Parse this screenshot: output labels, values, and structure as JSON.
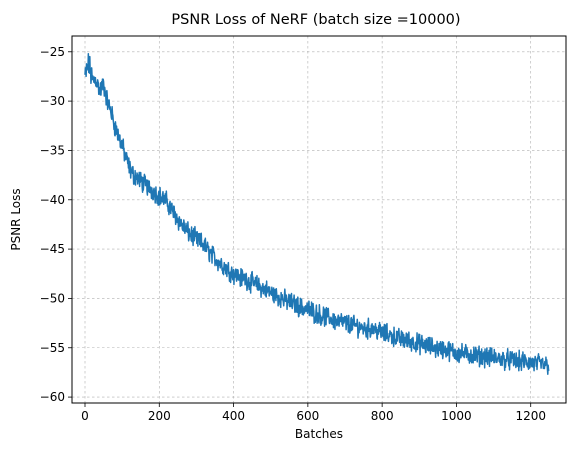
{
  "chart_data": {
    "type": "line",
    "title": "PSNR Loss of NeRF (batch size =10000)",
    "xlabel": "Batches",
    "ylabel": "PSNR Loss",
    "xlim": [
      -35,
      1295
    ],
    "ylim": [
      -60.6,
      -23.4
    ],
    "xticks": [
      0,
      200,
      400,
      600,
      800,
      1000,
      1200
    ],
    "yticks": [
      -60,
      -55,
      -50,
      -45,
      -40,
      -35,
      -30,
      -25
    ],
    "grid": true,
    "series_color": "#1f77b4",
    "series": [
      {
        "x": [
          0,
          10,
          20,
          30,
          40,
          50,
          60,
          70,
          80,
          90,
          100,
          110,
          120,
          130,
          140,
          150,
          160,
          170,
          180,
          190,
          200,
          210,
          220,
          230,
          240,
          250,
          260,
          270,
          280,
          290,
          300,
          310,
          320,
          330,
          340,
          350,
          360,
          370,
          380,
          390,
          400,
          410,
          420,
          430,
          440,
          450,
          460,
          470,
          480,
          490,
          500,
          510,
          520,
          530,
          540,
          550,
          560,
          570,
          580,
          590,
          600,
          610,
          620,
          630,
          640,
          650,
          660,
          670,
          680,
          690,
          700,
          710,
          720,
          730,
          740,
          750,
          760,
          770,
          780,
          790,
          800,
          810,
          820,
          830,
          840,
          850,
          860,
          870,
          880,
          890,
          900,
          910,
          920,
          930,
          940,
          950,
          960,
          970,
          980,
          990,
          1000,
          1010,
          1020,
          1030,
          1040,
          1050,
          1060,
          1070,
          1080,
          1090,
          1100,
          1110,
          1120,
          1130,
          1140,
          1150,
          1160,
          1170,
          1180,
          1190,
          1200,
          1210,
          1220,
          1230,
          1240,
          1250
        ],
        "y": [
          -27.5,
          -26.2,
          -28.0,
          -27.8,
          -29.0,
          -28.3,
          -30.0,
          -31.0,
          -32.5,
          -33.5,
          -34.5,
          -35.8,
          -36.8,
          -37.5,
          -37.7,
          -38.1,
          -38.4,
          -38.7,
          -39.0,
          -39.3,
          -39.6,
          -39.9,
          -40.2,
          -40.8,
          -41.4,
          -42.0,
          -42.5,
          -43.0,
          -43.4,
          -43.7,
          -44.0,
          -44.3,
          -44.6,
          -45.1,
          -45.5,
          -45.9,
          -46.3,
          -46.6,
          -46.9,
          -47.2,
          -47.5,
          -47.7,
          -47.9,
          -48.0,
          -48.2,
          -48.4,
          -48.6,
          -48.8,
          -49.0,
          -49.2,
          -49.4,
          -49.6,
          -49.8,
          -50.0,
          -50.2,
          -50.4,
          -50.5,
          -50.7,
          -50.9,
          -51.0,
          -51.1,
          -51.3,
          -51.5,
          -51.6,
          -51.8,
          -51.9,
          -52.0,
          -52.2,
          -52.3,
          -52.4,
          -52.5,
          -52.6,
          -52.7,
          -52.8,
          -52.9,
          -53.0,
          -53.1,
          -53.0,
          -53.1,
          -53.3,
          -53.5,
          -53.6,
          -53.7,
          -53.8,
          -54.0,
          -54.1,
          -54.2,
          -54.3,
          -54.4,
          -54.5,
          -54.6,
          -54.7,
          -54.8,
          -54.9,
          -55.0,
          -55.1,
          -55.1,
          -55.2,
          -55.3,
          -55.4,
          -55.5,
          -55.6,
          -55.6,
          -55.7,
          -55.7,
          -55.8,
          -55.8,
          -55.9,
          -55.9,
          -56.0,
          -56.0,
          -56.1,
          -56.1,
          -56.2,
          -56.2,
          -56.3,
          -56.3,
          -56.4,
          -56.4,
          -56.5,
          -56.5,
          -56.6,
          -56.6,
          -56.7,
          -56.7,
          -56.8
        ]
      }
    ]
  }
}
